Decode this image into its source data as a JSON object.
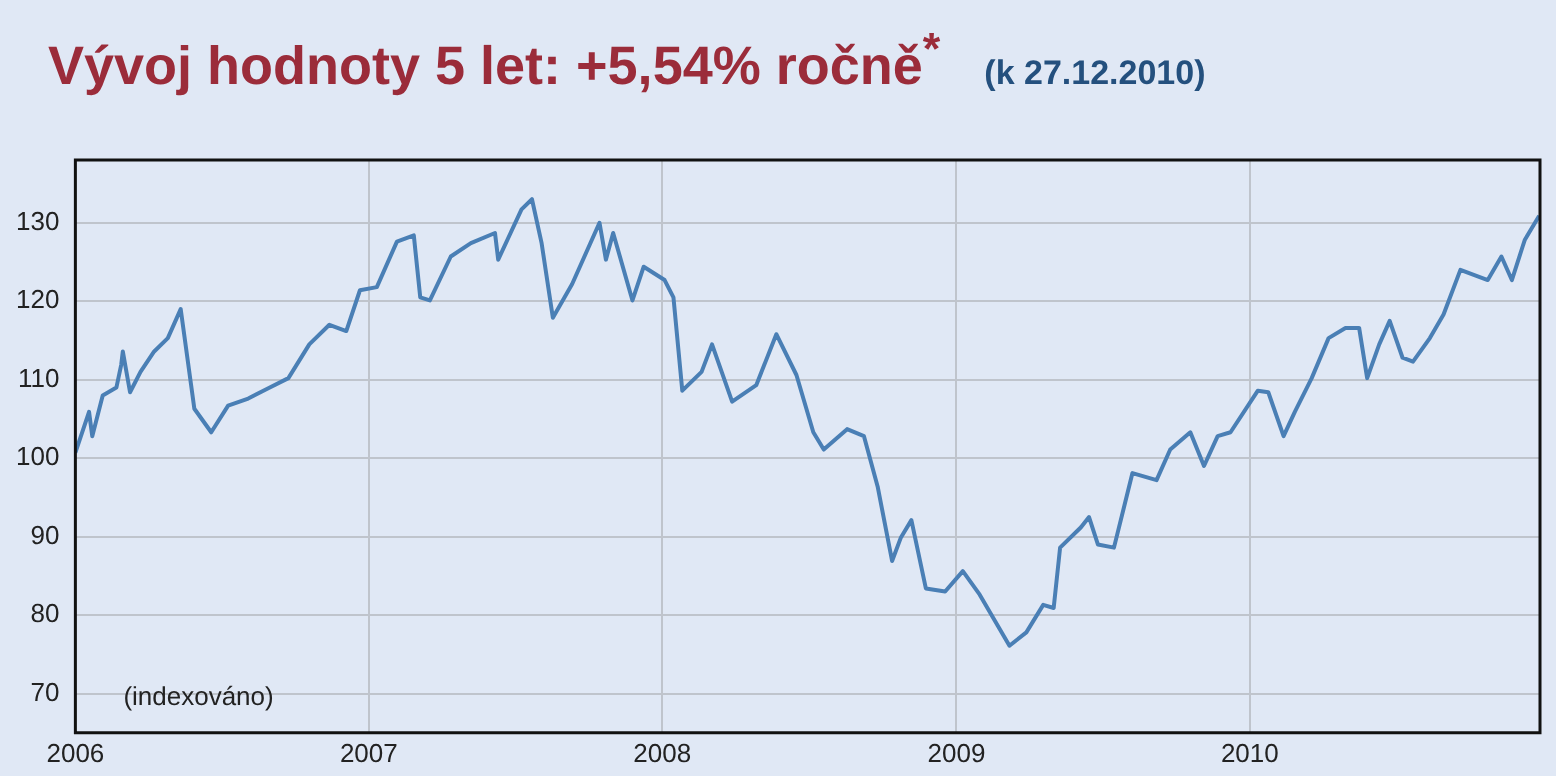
{
  "chart_data": {
    "type": "line",
    "title": "Vývoj hodnoty 5 let: +5,54% ročně$^{*}$",
    "subtitle": "(k 27.12.2010)",
    "annotations": [
      "(indexováno)"
    ],
    "x": [
      "2006-01-01",
      "2006-01-18",
      "2006-01-22",
      "2006-02-04",
      "2006-02-21",
      "2006-02-27",
      "2006-03-01",
      "2006-03-10",
      "2006-03-23",
      "2006-04-09",
      "2006-04-26",
      "2006-05-12",
      "2006-05-25",
      "2006-05-29",
      "2006-06-19",
      "2006-07-10",
      "2006-08-04",
      "2006-08-29",
      "2006-09-23",
      "2006-10-19",
      "2006-11-13",
      "2006-12-04",
      "2006-12-21",
      "2007-01-11",
      "2007-02-05",
      "2007-02-26",
      "2007-03-06",
      "2007-03-18",
      "2007-04-13",
      "2007-05-08",
      "2007-06-07",
      "2007-06-11",
      "2007-07-10",
      "2007-07-23",
      "2007-08-04",
      "2007-08-18",
      "2007-09-11",
      "2007-10-15",
      "2007-10-23",
      "2007-11-01",
      "2007-11-25",
      "2007-12-09",
      "2008-01-04",
      "2008-01-15",
      "2008-01-26",
      "2008-02-19",
      "2008-03-03",
      "2008-03-28",
      "2008-04-27",
      "2008-05-22",
      "2008-06-16",
      "2008-07-07",
      "2008-07-20",
      "2008-08-18",
      "2008-09-08",
      "2008-09-25",
      "2008-10-13",
      "2008-10-24",
      "2008-11-06",
      "2008-11-24",
      "2008-12-18",
      "2009-01-09",
      "2009-01-30",
      "2009-03-08",
      "2009-03-29",
      "2009-04-19",
      "2009-05-02",
      "2009-05-10",
      "2009-06-05",
      "2009-06-15",
      "2009-06-26",
      "2009-07-16",
      "2009-08-08",
      "2009-09-07",
      "2009-09-24",
      "2009-10-19",
      "2009-11-05",
      "2009-11-22",
      "2009-12-08",
      "2010-01-11",
      "2010-01-24",
      "2010-02-12",
      "2010-02-26",
      "2010-03-19",
      "2010-04-09",
      "2010-04-30",
      "2010-05-17",
      "2010-05-27",
      "2010-06-11",
      "2010-06-24",
      "2010-07-10",
      "2010-07-23",
      "2010-08-13",
      "2010-08-30",
      "2010-09-20",
      "2010-10-24",
      "2010-11-10",
      "2010-11-23",
      "2010-12-09",
      "2010-12-27"
    ],
    "series": [
      {
        "color": "#4a7fb5",
        "values": [
          100.7,
          105.9,
          102.8,
          108,
          109,
          111.9,
          113.6,
          108.4,
          111,
          113.6,
          115.3,
          119,
          109.3,
          106.3,
          103.3,
          106.7,
          107.6,
          108.9,
          110.2,
          114.5,
          117,
          116.2,
          121.4,
          121.8,
          127.6,
          128.4,
          120.5,
          120.1,
          125.7,
          127.4,
          128.7,
          125.3,
          131.7,
          133,
          127.4,
          117.9,
          122.2,
          130,
          125.3,
          128.7,
          120.1,
          124.4,
          122.7,
          120.5,
          108.6,
          111,
          114.5,
          107.2,
          109.3,
          115.8,
          110.6,
          103.3,
          101.1,
          103.7,
          102.8,
          96.4,
          86.9,
          89.9,
          92.1,
          83.4,
          83,
          85.6,
          82.6,
          76.1,
          77.8,
          81.3,
          80.9,
          88.6,
          91.2,
          92.5,
          89,
          88.6,
          98.1,
          97.2,
          101.1,
          103.3,
          99,
          102.8,
          103.3,
          108.6,
          108.4,
          102.8,
          105.9,
          110.2,
          115.3,
          116.6,
          116.6,
          110.2,
          114.5,
          117.5,
          112.8,
          112.3,
          115.3,
          118.3,
          124,
          122.7,
          125.7,
          122.7,
          127.8,
          130.9
        ]
      }
    ],
    "xlim": [
      "2006-01-01",
      "2010-12-28"
    ],
    "xticks": [
      "2006",
      "2007",
      "2008",
      "2009",
      "2010"
    ],
    "ylim": [
      65,
      138
    ],
    "yticks": [
      70,
      80,
      90,
      100,
      110,
      120,
      130
    ],
    "grid": true,
    "legend": false,
    "marker": "none",
    "line_style": "solid"
  }
}
